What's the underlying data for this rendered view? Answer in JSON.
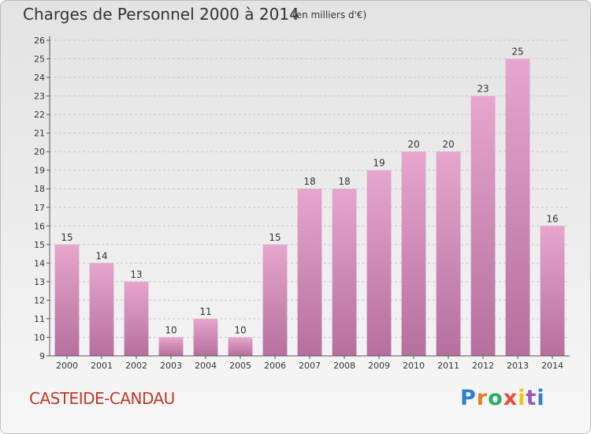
{
  "header": {
    "title": "Charges de Personnel 2000 à 2014",
    "subtitle": "(en milliers d'€)"
  },
  "footer": {
    "place": "CASTEIDE-CANDAU",
    "brand": [
      "P",
      "r",
      "o",
      "x",
      "i",
      "t",
      "i"
    ],
    "brand_colors": [
      "#2f7fd0",
      "#e67e22",
      "#27ae60",
      "#e74c3c",
      "#f1c40f",
      "#9b59b6",
      "#2f7fd0"
    ]
  },
  "colors": {
    "bar_top": "#e6a6cd",
    "bar_bottom": "#b66f9e",
    "grid": "#c8c8c8",
    "text": "#333333"
  },
  "chart_data": {
    "type": "bar",
    "categories": [
      "2000",
      "2001",
      "2002",
      "2003",
      "2004",
      "2005",
      "2006",
      "2007",
      "2008",
      "2009",
      "2010",
      "2011",
      "2012",
      "2013",
      "2014"
    ],
    "values": [
      15,
      14,
      13,
      10,
      11,
      10,
      15,
      18,
      18,
      19,
      20,
      20,
      23,
      25,
      16
    ],
    "title": "Charges de Personnel 2000 à 2014",
    "ylim": [
      9,
      26
    ],
    "yticks": [
      9,
      10,
      11,
      12,
      13,
      14,
      15,
      16,
      17,
      18,
      19,
      20,
      21,
      22,
      23,
      24,
      25,
      26
    ],
    "grid": true,
    "data_labels": true
  }
}
